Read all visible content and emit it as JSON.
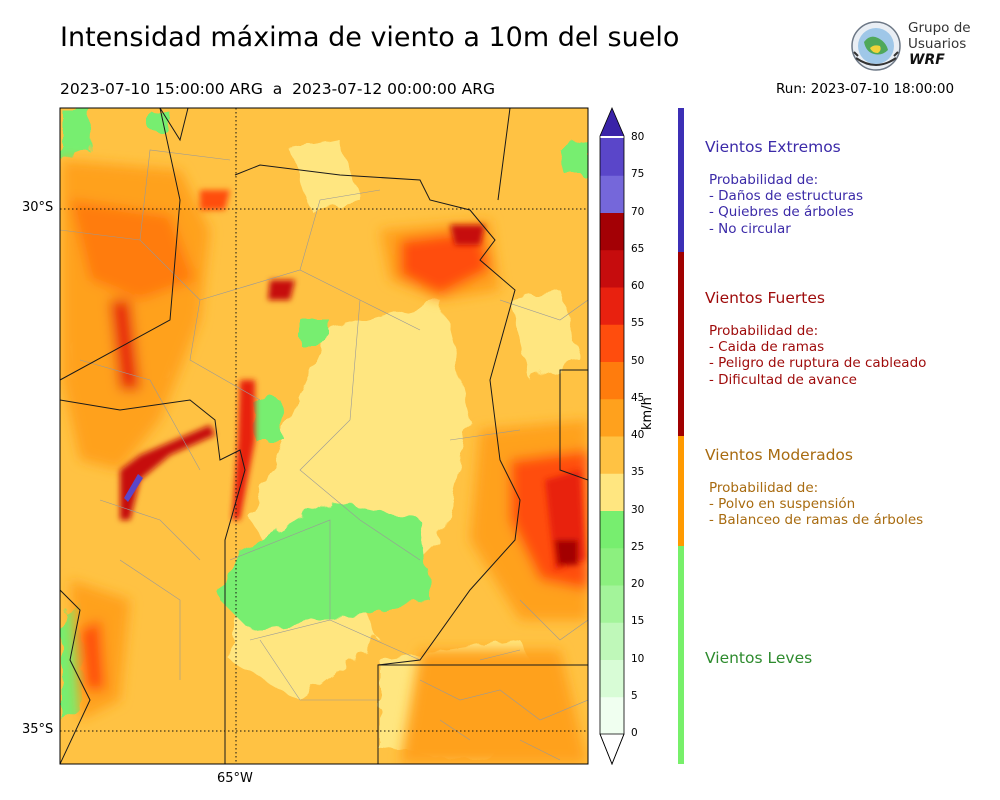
{
  "title": "Intensidad máxima de viento a 10m del suelo",
  "period": "2023-07-10 15:00:00 ARG  a  2023-07-12 00:00:00 ARG",
  "run": "Run: 2023-07-10 18:00:00",
  "logo": {
    "line1": "Grupo de",
    "line2": "Usuarios",
    "line3": "WRF"
  },
  "map": {
    "lat_labels": [
      "30°S",
      "35°S"
    ],
    "lon_labels": [
      "65°W"
    ]
  },
  "colorbar": {
    "unit": "km/h",
    "ticks": [
      "0",
      "5",
      "10",
      "15",
      "20",
      "25",
      "30",
      "35",
      "40",
      "45",
      "50",
      "55",
      "60",
      "65",
      "70",
      "75",
      "80"
    ],
    "colors": [
      "#f0fff0",
      "#d8fcd6",
      "#bff8b9",
      "#a3f49a",
      "#8cf07f",
      "#77ee6f",
      "#ffe680",
      "#ffc243",
      "#ffa11d",
      "#ff7c0d",
      "#ff4d0d",
      "#e8210f",
      "#c60c0d",
      "#a30005",
      "#7567da",
      "#5a46c9",
      "#4128b7"
    ],
    "extend_color": "#3a23a8"
  },
  "categories": [
    {
      "title": "Vientos Extremos",
      "color": "#3b2aa8",
      "band_color": "#3c2fb5",
      "lines": [
        "Probabilidad de:",
        "- Daños de estructuras",
        "- Quiebres de árboles",
        "- No circular"
      ]
    },
    {
      "title": "Vientos Fuertes",
      "color": "#9e0a0a",
      "band_color": "#a00000",
      "lines": [
        "Probabilidad de:",
        "- Caida de ramas",
        "- Peligro de ruptura de cableado",
        "- Dificultad de avance"
      ]
    },
    {
      "title": "Vientos Moderados",
      "color": "#a86b10",
      "band_color": "#ff9a00",
      "lines": [
        "Probabilidad de:",
        "- Polvo en suspensión",
        "- Balanceo de ramas de árboles"
      ]
    },
    {
      "title": "Vientos Leves",
      "color": "#2e8b2e",
      "band_color": "#77f06a",
      "lines": []
    }
  ]
}
